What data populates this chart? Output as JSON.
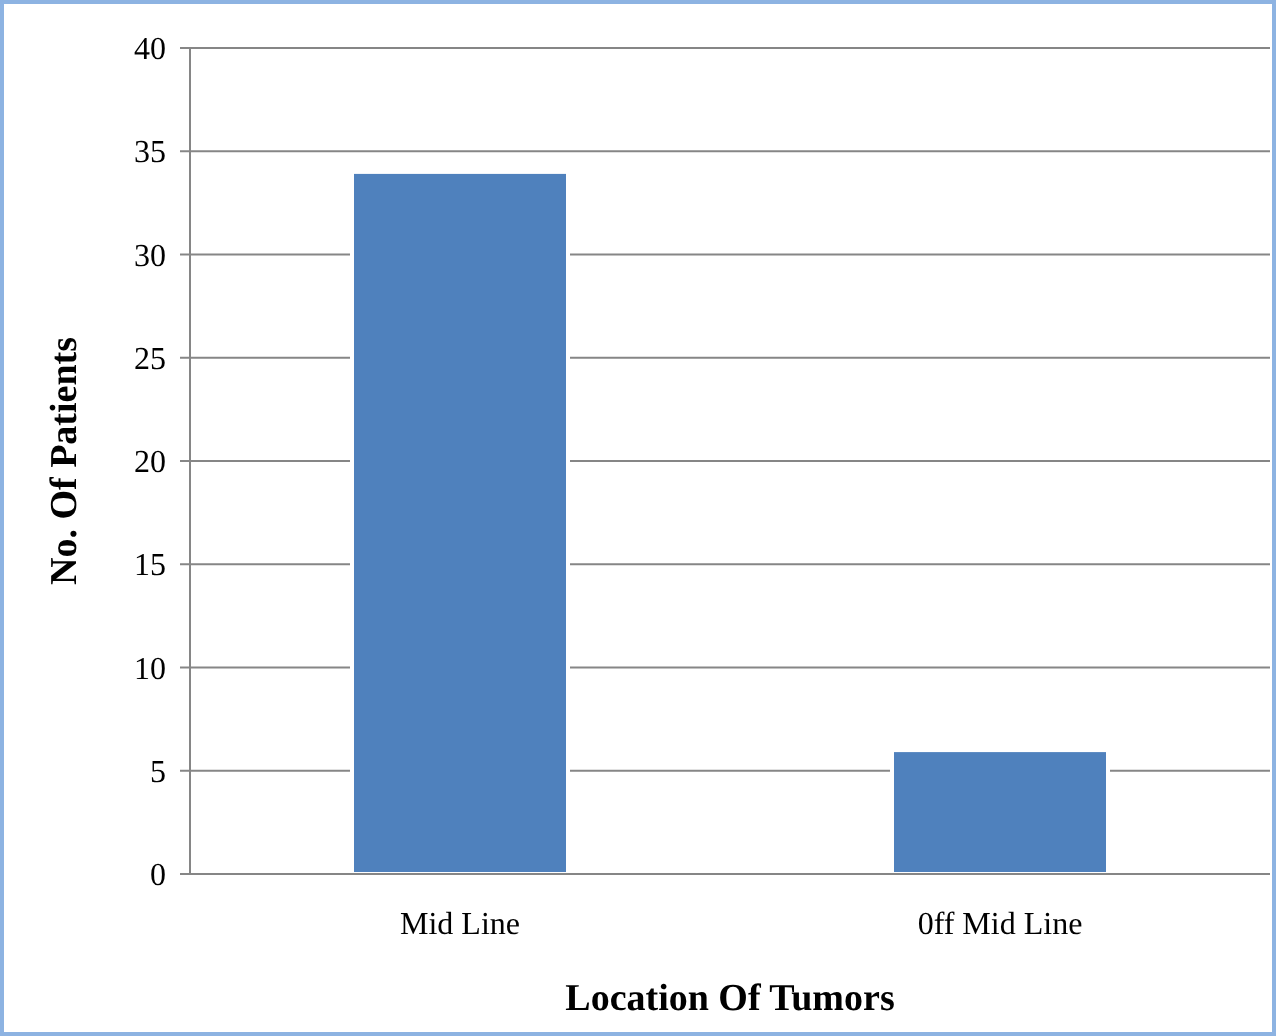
{
  "chart_data": {
    "type": "bar",
    "xlabel": "Location Of Tumors",
    "ylabel": "No. Of Patients",
    "categories": [
      "Mid Line",
      "0ff Mid Line"
    ],
    "values": [
      34,
      6
    ],
    "color": "#4f81bd",
    "ylim": [
      0,
      40
    ],
    "yticks": [
      0,
      5,
      10,
      15,
      20,
      25,
      30,
      35,
      40
    ],
    "grid": "y"
  }
}
